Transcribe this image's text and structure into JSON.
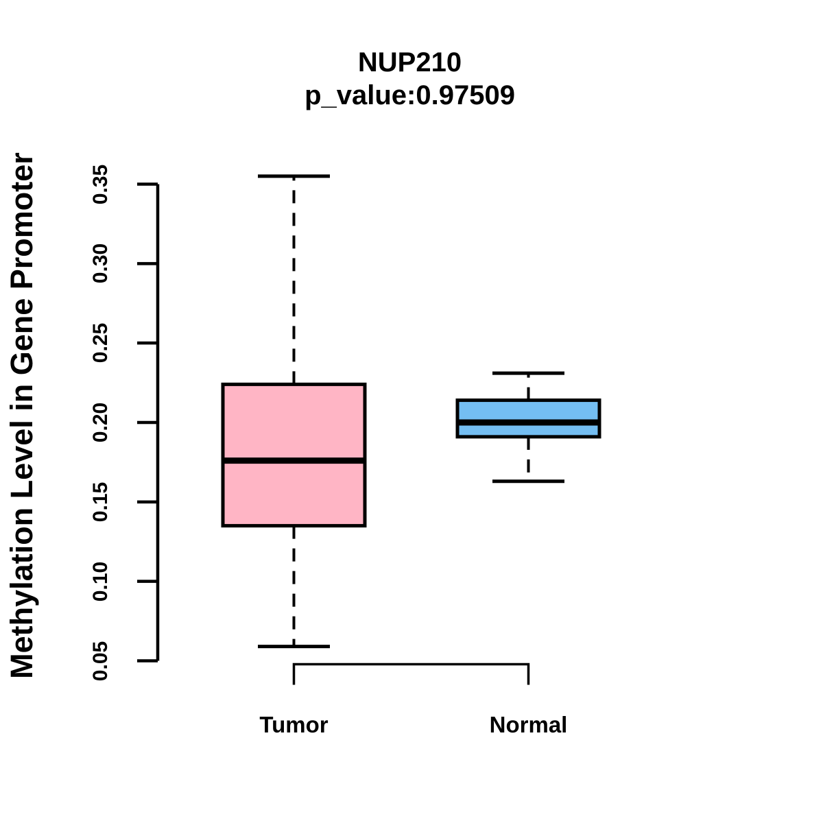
{
  "figure": {
    "title": "NUP210",
    "subtitle": "p_value:0.97509",
    "ylabel": "Methylation Level in Gene Promoter"
  },
  "chart_data": {
    "type": "boxplot",
    "title": "NUP210",
    "subtitle": "p_value:0.97509",
    "ylabel": "Methylation Level in Gene Promoter",
    "xlabel": "",
    "categories": [
      "Tumor",
      "Normal"
    ],
    "series": [
      {
        "name": "Tumor",
        "min": 0.059,
        "q1": 0.135,
        "median": 0.176,
        "q3": 0.224,
        "max": 0.355,
        "fill_color": "#FFB5C5"
      },
      {
        "name": "Normal",
        "min": 0.163,
        "q1": 0.191,
        "median": 0.2,
        "q3": 0.214,
        "max": 0.231,
        "fill_color": "#74BEF2"
      }
    ],
    "yticks": [
      0.05,
      0.1,
      0.15,
      0.2,
      0.25,
      0.3,
      0.35
    ],
    "ytick_format_decimals": 2,
    "ylim": [
      0.05,
      0.35
    ],
    "grid": false,
    "legend": "none",
    "line_color": "#000000",
    "background_color": "#ffffff",
    "whisker_style": "dashed",
    "group_bracket": true
  }
}
